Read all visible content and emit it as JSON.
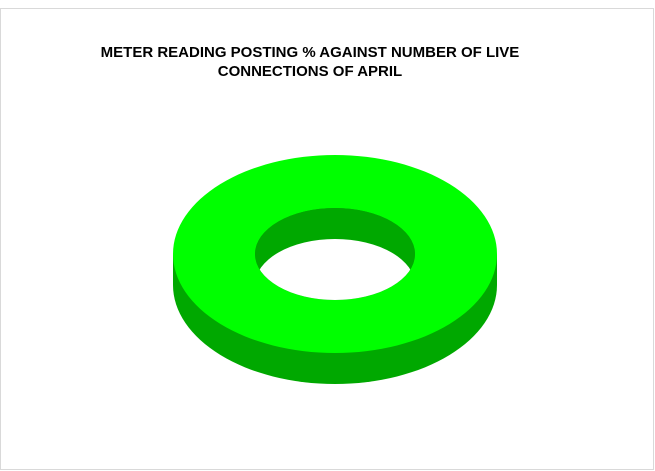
{
  "chart_data": {
    "type": "pie",
    "style": "3d-doughnut",
    "title_lines": [
      "METER READING POSTING % AGAINST NUMBER OF LIVE",
      "CONNECTIONS OF APRIL"
    ],
    "categories": [
      ""
    ],
    "values": [
      100
    ],
    "legend": "none",
    "colors": {
      "top": "#00ff00",
      "side": "#00a800",
      "inner_wall": "#00a800"
    }
  }
}
